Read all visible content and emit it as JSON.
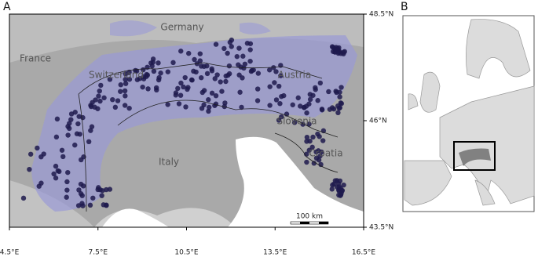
{
  "panel_a": {
    "label": "A",
    "countries": [
      "France",
      "Germany",
      "Switzerland",
      "Austria",
      "Slovenia",
      "Croatia",
      "Italy"
    ],
    "lat_lim": [
      43.5,
      48.5
    ],
    "lon_lim": [
      4.5,
      16.5
    ],
    "lat_ticks": [
      {
        "value": 48.5,
        "label": "48.5°N"
      },
      {
        "value": 46,
        "label": "46°N"
      },
      {
        "value": 43.5,
        "label": "43.5°N"
      }
    ],
    "lon_ticks": [
      {
        "value": 4.5,
        "label": "4.5°E"
      },
      {
        "value": 7.5,
        "label": "7.5°E"
      },
      {
        "value": 10.5,
        "label": "10.5°E"
      },
      {
        "value": 13.5,
        "label": "13.5°E"
      },
      {
        "value": 16.5,
        "label": "16.5°E"
      }
    ],
    "scale_bar": "100 km"
  },
  "panel_b": {
    "label": "B"
  }
}
